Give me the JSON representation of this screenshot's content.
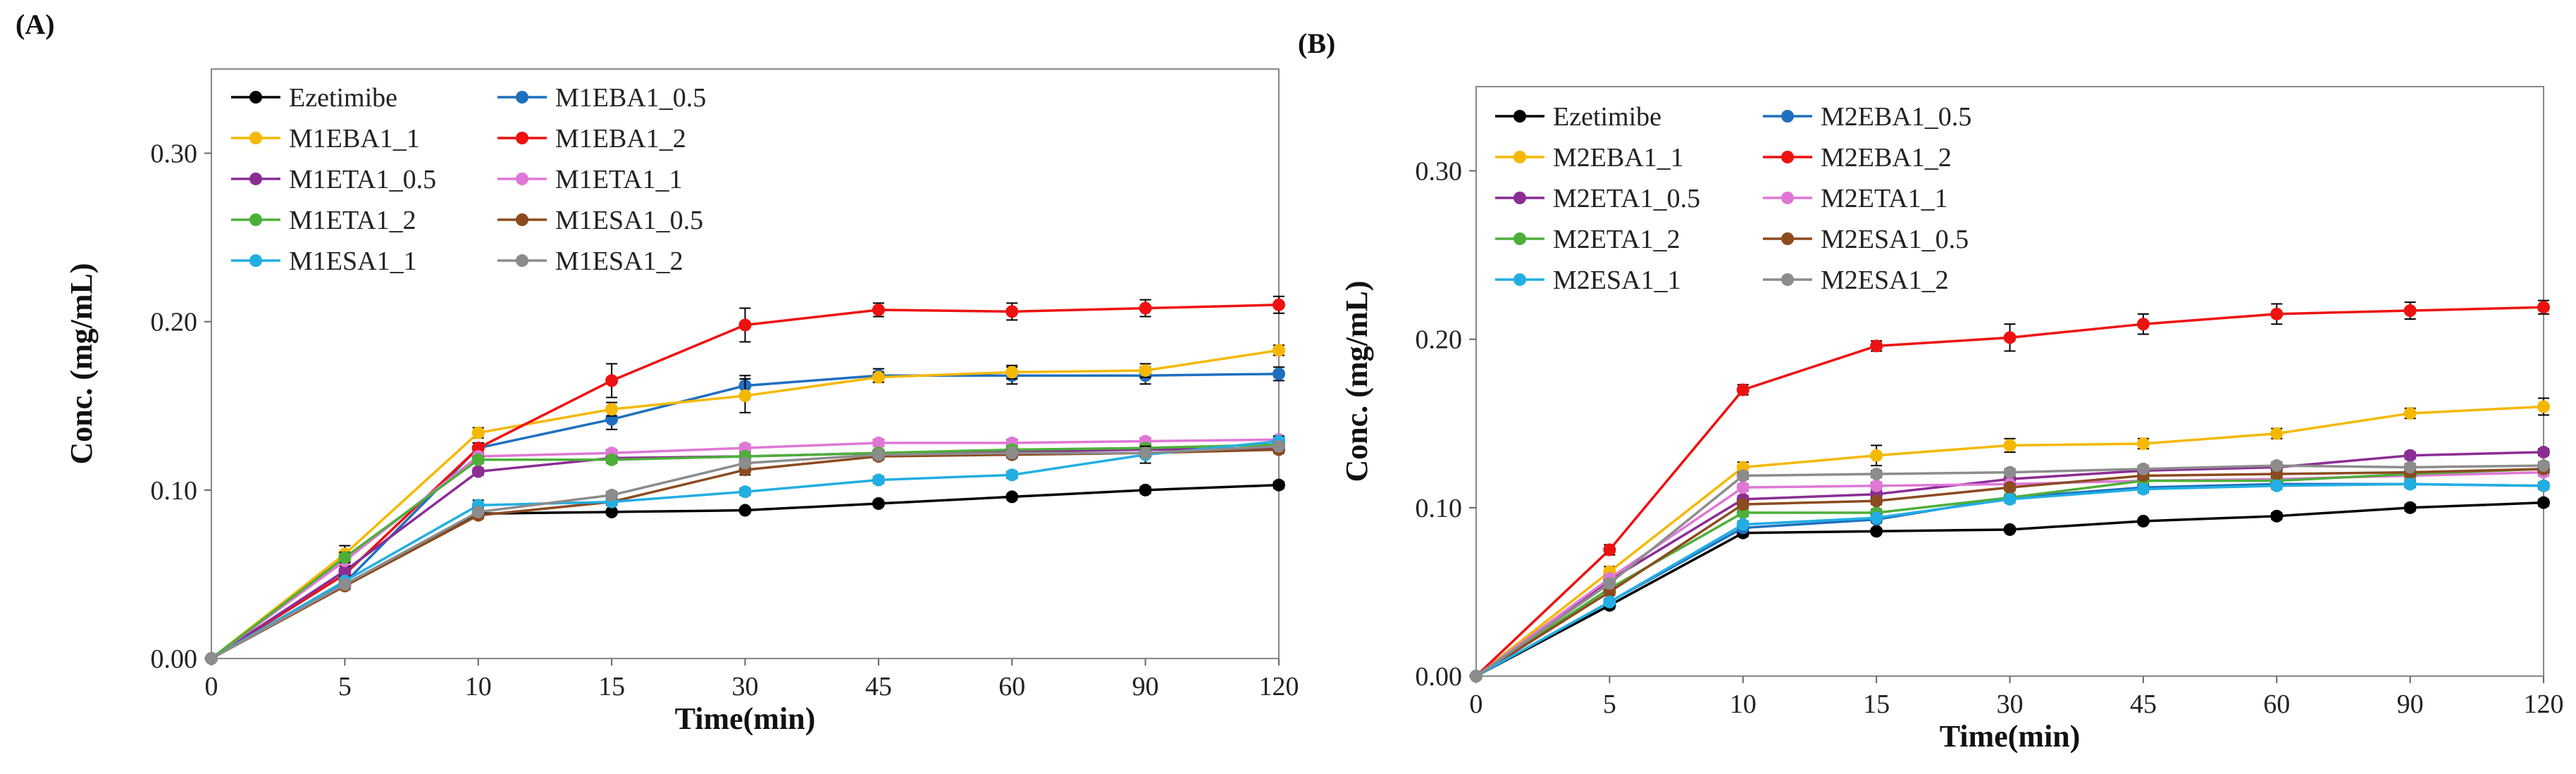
{
  "chart_data": [
    {
      "type": "line",
      "panel_label": "(A)",
      "title": "",
      "xlabel": "Time(min)",
      "ylabel": "Conc. (mg/mL)",
      "categories": [
        "0",
        "5",
        "10",
        "15",
        "30",
        "45",
        "60",
        "90",
        "120"
      ],
      "ylim": [
        0,
        0.35
      ],
      "yticks": [
        "0.00",
        "0.10",
        "0.20",
        "0.30"
      ],
      "ytick_values": [
        0,
        0.1,
        0.2,
        0.3
      ],
      "legend_position": "top-left",
      "grid": false,
      "series": [
        {
          "name": "Ezetimibe",
          "color": "#000000",
          "values": [
            0,
            0.044,
            0.086,
            0.087,
            0.088,
            0.092,
            0.096,
            0.1,
            0.103
          ],
          "errors": [
            0,
            0.002,
            0.002,
            0.001,
            0.001,
            0.001,
            0.001,
            0.002,
            0.002
          ]
        },
        {
          "name": "M1EBA1_0.5",
          "color": "#1f6fbf",
          "values": [
            0,
            0.045,
            0.125,
            0.142,
            0.162,
            0.168,
            0.168,
            0.168,
            0.169
          ],
          "errors": [
            0,
            0.003,
            0.003,
            0.006,
            0.006,
            0.004,
            0.005,
            0.005,
            0.004
          ]
        },
        {
          "name": "M1EBA1_1",
          "color": "#f5b800",
          "values": [
            0,
            0.062,
            0.134,
            0.148,
            0.156,
            0.167,
            0.17,
            0.171,
            0.183
          ],
          "errors": [
            0,
            0.005,
            0.003,
            0.004,
            0.01,
            0.003,
            0.004,
            0.004,
            0.003
          ]
        },
        {
          "name": "M1EBA1_2",
          "color": "#ee1111",
          "values": [
            0,
            0.05,
            0.125,
            0.165,
            0.198,
            0.207,
            0.206,
            0.208,
            0.21
          ],
          "errors": [
            0,
            0.003,
            0.003,
            0.01,
            0.01,
            0.004,
            0.005,
            0.005,
            0.005
          ]
        },
        {
          "name": "M1ETA1_0.5",
          "color": "#8b2d95",
          "values": [
            0,
            0.052,
            0.111,
            0.119,
            0.12,
            0.122,
            0.123,
            0.124,
            0.125
          ],
          "errors": [
            0,
            0.003,
            0.002,
            0.002,
            0.002,
            0.002,
            0.002,
            0.002,
            0.002
          ]
        },
        {
          "name": "M1ETA1_1",
          "color": "#e077d6",
          "values": [
            0,
            0.058,
            0.12,
            0.122,
            0.125,
            0.128,
            0.128,
            0.129,
            0.13
          ],
          "errors": [
            0,
            0.003,
            0.002,
            0.002,
            0.002,
            0.002,
            0.002,
            0.002,
            0.002
          ]
        },
        {
          "name": "M1ETA1_2",
          "color": "#4daf3a",
          "values": [
            0,
            0.06,
            0.118,
            0.118,
            0.12,
            0.122,
            0.124,
            0.125,
            0.127
          ],
          "errors": [
            0,
            0.003,
            0.002,
            0.002,
            0.002,
            0.002,
            0.002,
            0.002,
            0.002
          ]
        },
        {
          "name": "M1ESA1_0.5",
          "color": "#8c4a1f",
          "values": [
            0,
            0.043,
            0.085,
            0.093,
            0.112,
            0.12,
            0.121,
            0.122,
            0.124
          ],
          "errors": [
            0,
            0.002,
            0.002,
            0.002,
            0.003,
            0.002,
            0.002,
            0.002,
            0.002
          ]
        },
        {
          "name": "M1ESA1_1",
          "color": "#22aee3",
          "values": [
            0,
            0.046,
            0.091,
            0.093,
            0.099,
            0.106,
            0.109,
            0.121,
            0.129
          ],
          "errors": [
            0,
            0.002,
            0.003,
            0.002,
            0.002,
            0.002,
            0.002,
            0.005,
            0.003
          ]
        },
        {
          "name": "M1ESA1_2",
          "color": "#8c8c8c",
          "values": [
            0,
            0.044,
            0.087,
            0.097,
            0.116,
            0.121,
            0.122,
            0.122,
            0.126
          ],
          "errors": [
            0,
            0.002,
            0.002,
            0.002,
            0.002,
            0.002,
            0.002,
            0.002,
            0.002
          ]
        }
      ]
    },
    {
      "type": "line",
      "panel_label": "(B)",
      "title": "",
      "xlabel": "Time(min)",
      "ylabel": "Conc. (mg/mL)",
      "categories": [
        "0",
        "5",
        "10",
        "15",
        "30",
        "45",
        "60",
        "90",
        "120"
      ],
      "ylim": [
        0,
        0.35
      ],
      "yticks": [
        "0.00",
        "0.10",
        "0.20",
        "0.30"
      ],
      "ytick_values": [
        0,
        0.1,
        0.2,
        0.3
      ],
      "legend_position": "top-left",
      "grid": false,
      "series": [
        {
          "name": "Ezetimibe",
          "color": "#000000",
          "values": [
            0,
            0.042,
            0.085,
            0.086,
            0.087,
            0.092,
            0.095,
            0.1,
            0.103
          ],
          "errors": [
            0,
            0.002,
            0.002,
            0.001,
            0.001,
            0.001,
            0.002,
            0.002,
            0.002
          ]
        },
        {
          "name": "M2EBA1_0.5",
          "color": "#1f6fbf",
          "values": [
            0,
            0.044,
            0.088,
            0.093,
            0.106,
            0.112,
            0.114,
            0.114,
            0.113
          ],
          "errors": [
            0,
            0.002,
            0.002,
            0.002,
            0.002,
            0.002,
            0.002,
            0.002,
            0.002
          ]
        },
        {
          "name": "M2EBA1_1",
          "color": "#f5b800",
          "values": [
            0,
            0.062,
            0.124,
            0.131,
            0.137,
            0.138,
            0.144,
            0.156,
            0.16
          ],
          "errors": [
            0,
            0.003,
            0.003,
            0.006,
            0.004,
            0.003,
            0.003,
            0.003,
            0.005
          ]
        },
        {
          "name": "M2EBA1_2",
          "color": "#ee1111",
          "values": [
            0,
            0.075,
            0.17,
            0.196,
            0.201,
            0.209,
            0.215,
            0.217,
            0.219
          ],
          "errors": [
            0,
            0.003,
            0.003,
            0.003,
            0.008,
            0.006,
            0.006,
            0.005,
            0.004
          ]
        },
        {
          "name": "M2ETA1_0.5",
          "color": "#8b2d95",
          "values": [
            0,
            0.057,
            0.105,
            0.108,
            0.117,
            0.122,
            0.124,
            0.131,
            0.133
          ],
          "errors": [
            0,
            0.002,
            0.002,
            0.002,
            0.002,
            0.002,
            0.002,
            0.002,
            0.002
          ]
        },
        {
          "name": "M2ETA1_1",
          "color": "#e077d6",
          "values": [
            0,
            0.058,
            0.112,
            0.113,
            0.114,
            0.116,
            0.117,
            0.119,
            0.121
          ],
          "errors": [
            0,
            0.002,
            0.002,
            0.002,
            0.002,
            0.002,
            0.002,
            0.002,
            0.002
          ]
        },
        {
          "name": "M2ETA1_2",
          "color": "#4daf3a",
          "values": [
            0,
            0.052,
            0.097,
            0.097,
            0.106,
            0.116,
            0.116,
            0.12,
            0.123
          ],
          "errors": [
            0,
            0.002,
            0.002,
            0.002,
            0.002,
            0.002,
            0.002,
            0.002,
            0.002
          ]
        },
        {
          "name": "M2ESA1_0.5",
          "color": "#8c4a1f",
          "values": [
            0,
            0.05,
            0.102,
            0.104,
            0.112,
            0.119,
            0.12,
            0.121,
            0.123
          ],
          "errors": [
            0,
            0.002,
            0.002,
            0.002,
            0.002,
            0.002,
            0.002,
            0.002,
            0.002
          ]
        },
        {
          "name": "M2ESA1_1",
          "color": "#22aee3",
          "values": [
            0,
            0.044,
            0.09,
            0.094,
            0.105,
            0.111,
            0.113,
            0.114,
            0.113
          ],
          "errors": [
            0,
            0.002,
            0.002,
            0.002,
            0.002,
            0.002,
            0.002,
            0.002,
            0.002
          ]
        },
        {
          "name": "M2ESA1_2",
          "color": "#8c8c8c",
          "values": [
            0,
            0.055,
            0.119,
            0.12,
            0.121,
            0.123,
            0.125,
            0.124,
            0.125
          ],
          "errors": [
            0,
            0.002,
            0.002,
            0.002,
            0.002,
            0.002,
            0.002,
            0.002,
            0.002
          ]
        }
      ]
    }
  ]
}
